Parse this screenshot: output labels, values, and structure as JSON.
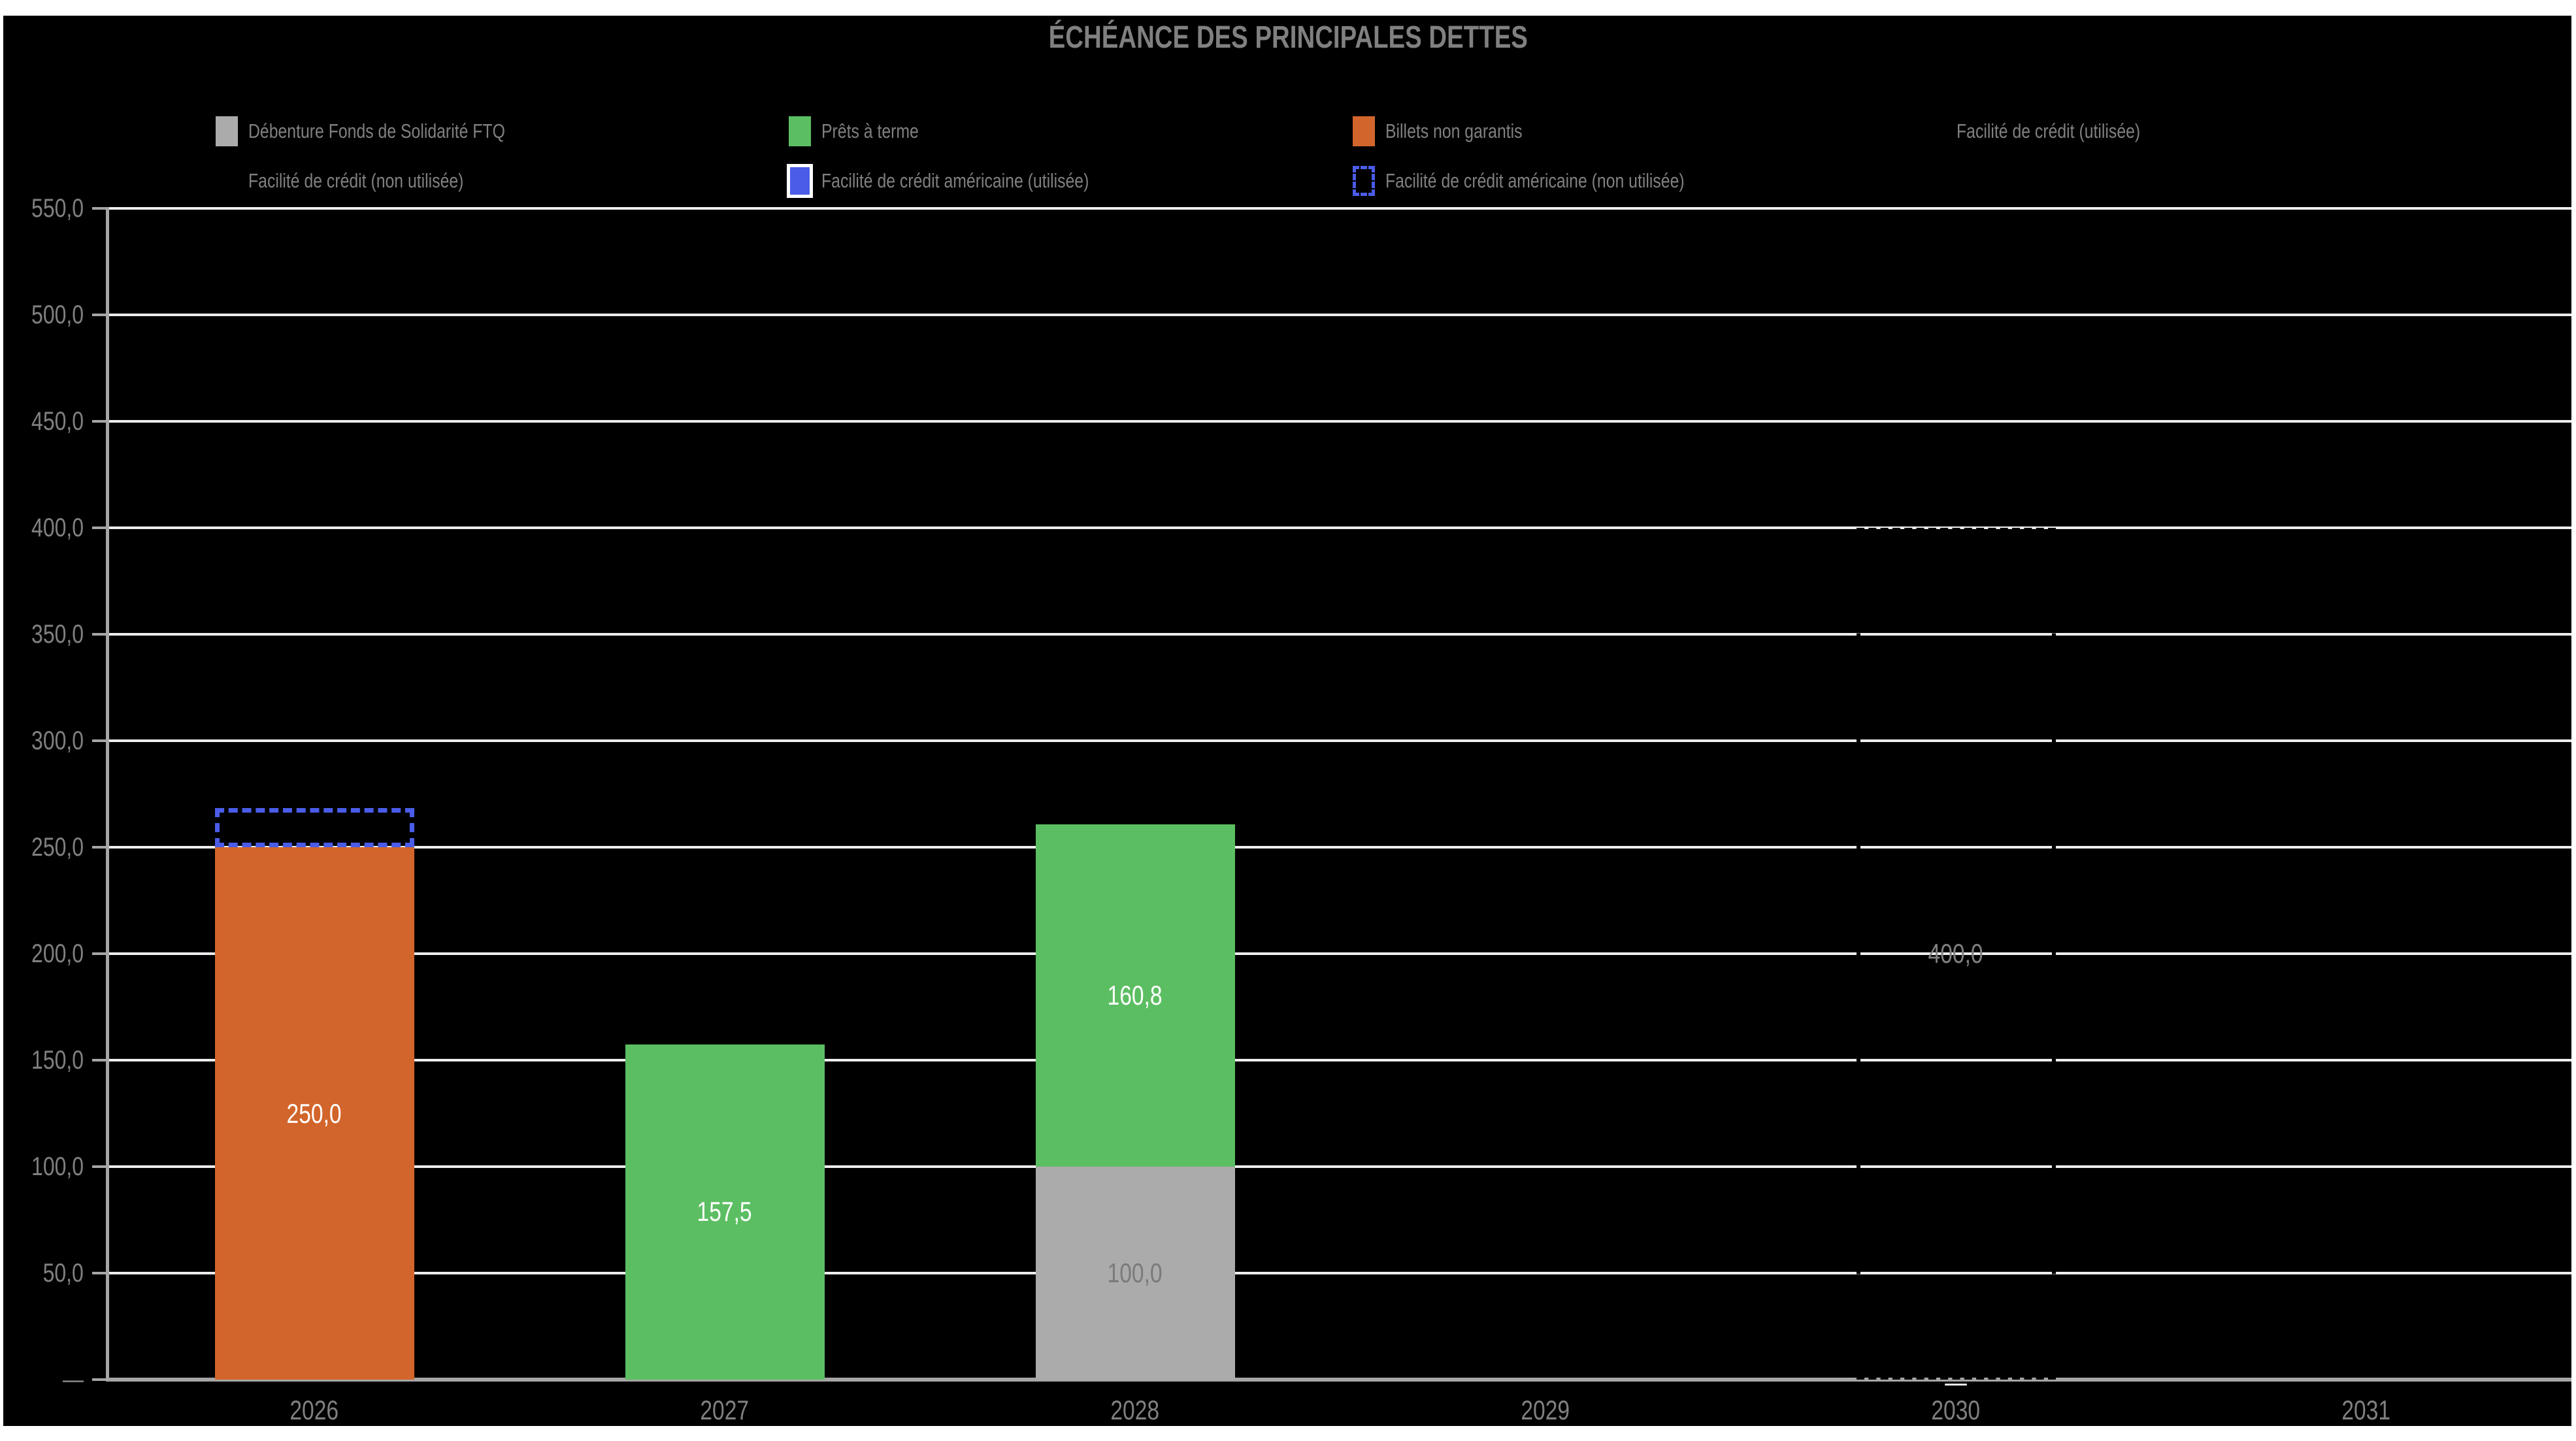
{
  "title": "ÉCHÉANCE DES PRINCIPALES DETTES",
  "colors": {
    "background": "#000000",
    "page": "#ffffff",
    "text_gray": "#808080",
    "gridline": "#ededed",
    "axis": "#a6a6a6",
    "debenture_gray": "#ababab",
    "prets_green": "#5cbe62",
    "billets_orange": "#d2652b",
    "facilite_us_blue": "#4a5ce8",
    "label_white": "#ffffff",
    "label_gray_on_bar": "#7a7a7a"
  },
  "legend": {
    "rows": [
      [
        {
          "label": "Débenture Fonds de Solidarité FTQ",
          "swatch": "solid",
          "color": "#ababab"
        },
        {
          "label": "Prêts à terme",
          "swatch": "solid",
          "color": "#5cbe62"
        },
        {
          "label": "Billets non garantis",
          "swatch": "solid",
          "color": "#d2652b"
        },
        {
          "label": "Facilité de crédit (utilisée)",
          "swatch": "invisible-black",
          "color": "#000000"
        }
      ],
      [
        {
          "label": "Facilité de crédit (non utilisée)",
          "swatch": "invisible-black",
          "color": "#000000"
        },
        {
          "label": "Facilité de crédit américaine (utilisée)",
          "swatch": "solid-white-border",
          "color": "#4a5ce8"
        },
        {
          "label": "Facilité de crédit américaine (non utilisée)",
          "swatch": "dashed",
          "color": "#4a5ce8"
        }
      ]
    ]
  },
  "chart_data": {
    "type": "bar",
    "stacked": true,
    "title": "ÉCHÉANCE DES PRINCIPALES DETTES",
    "categories": [
      "2026",
      "2027",
      "2028",
      "2029",
      "2030",
      "2031"
    ],
    "ylim": [
      0,
      550
    ],
    "ytick_interval": 50,
    "yticks": [
      {
        "label": "550,0",
        "value": 550
      },
      {
        "label": "500,0",
        "value": 500
      },
      {
        "label": "450,0",
        "value": 450
      },
      {
        "label": "400,0",
        "value": 400
      },
      {
        "label": "350,0",
        "value": 350
      },
      {
        "label": "300,0",
        "value": 300
      },
      {
        "label": "250,0",
        "value": 250
      },
      {
        "label": "200,0",
        "value": 200
      },
      {
        "label": "150,0",
        "value": 150
      },
      {
        "label": "100,0",
        "value": 100
      },
      {
        "label": "50,0",
        "value": 50
      },
      {
        "label": "—",
        "value": 0
      }
    ],
    "grid": "horizontal white lines on black",
    "legend_position": "top",
    "number_format": "French decimal comma; zero shown as dash",
    "series": [
      {
        "name": "Débenture Fonds de Solidarité FTQ",
        "style": "fill",
        "color": "#ababab",
        "values": [
          0,
          0,
          100.0,
          0,
          0,
          0
        ],
        "labels": [
          "",
          "",
          "100,0",
          "",
          "",
          ""
        ],
        "label_color": "#7a7a7a"
      },
      {
        "name": "Prêts à terme",
        "style": "fill",
        "color": "#5cbe62",
        "values": [
          0,
          157.5,
          160.8,
          0,
          0,
          0
        ],
        "labels": [
          "",
          "157,5",
          "160,8",
          "",
          "",
          ""
        ],
        "label_color": "#ffffff"
      },
      {
        "name": "Billets non garantis",
        "style": "fill",
        "color": "#d2652b",
        "values": [
          250.0,
          0,
          0,
          0,
          0,
          0
        ],
        "labels": [
          "250,0",
          "",
          "",
          "",
          "",
          ""
        ],
        "label_color": "#ffffff"
      },
      {
        "name": "Facilité de crédit (utilisée)",
        "style": "fill",
        "color": "#000000",
        "values": [
          0,
          0,
          0,
          0,
          0,
          0
        ],
        "labels": [
          "",
          "",
          "",
          "",
          "—",
          ""
        ],
        "label_color": "#ffffff"
      },
      {
        "name": "Facilité de crédit (non utilisée)",
        "style": "outline-dashed-black",
        "color": "#000000",
        "values": [
          0,
          0,
          0,
          0,
          400.0,
          0
        ],
        "labels": [
          "",
          "",
          "",
          "",
          "400,0",
          ""
        ],
        "label_color": "#808080"
      },
      {
        "name": "Facilité de crédit américaine (utilisée)",
        "style": "fill",
        "color": "#4a5ce8",
        "values": [
          0,
          0,
          0,
          0,
          0,
          0
        ],
        "labels": [
          "",
          "",
          "",
          "",
          "",
          ""
        ],
        "label_color": "#ffffff"
      },
      {
        "name": "Facilité de crédit américaine (non utilisée)",
        "style": "outline-dashed-blue",
        "color": "#4a5ce8",
        "values": [
          18.4,
          0,
          0,
          0,
          0,
          0
        ],
        "labels": [
          "",
          "",
          "",
          "",
          "",
          ""
        ],
        "label_color": "#ffffff",
        "note": "value estimated from gridlines (~18, top of dashed box ≈268); no data label shown"
      }
    ]
  }
}
